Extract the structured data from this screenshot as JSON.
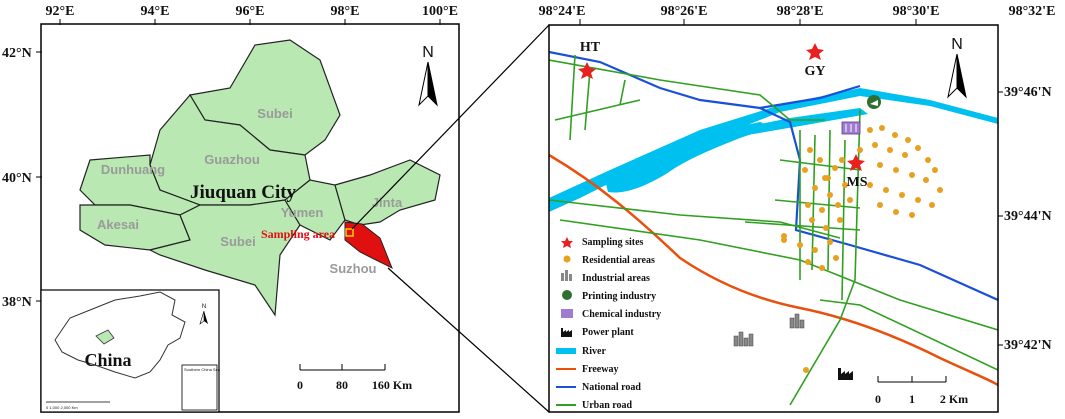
{
  "left_map": {
    "lon_ticks": [
      "92°E",
      "94°E",
      "96°E",
      "98°E",
      "100°E"
    ],
    "lat_ticks": [
      "42°N",
      "40°N",
      "38°N"
    ],
    "city_label": "Jiuquan City",
    "regions": [
      "Subei",
      "Guazhou",
      "Dunhuang",
      "Yumen",
      "Jinta",
      "Akesai",
      "Subei",
      "Suzhou"
    ],
    "sampling_label": "Sampling area",
    "north_label": "N",
    "scale": {
      "ticks": [
        "0",
        "80",
        "160 Km"
      ]
    },
    "inset": {
      "label": "China",
      "north": "N",
      "scs_label": "Southern China Sea",
      "scale_text": "0      1,000    2,000 Km"
    }
  },
  "right_map": {
    "lon_ticks": [
      "98°24'E",
      "98°26'E",
      "98°28'E",
      "98°30'E",
      "98°32'E"
    ],
    "lat_ticks": [
      "39°46'N",
      "39°44'N",
      "39°42'N"
    ],
    "sites": [
      "HT",
      "GY",
      "MS"
    ],
    "north_label": "N",
    "scale": {
      "ticks": [
        "0",
        "1",
        "2 Km"
      ]
    },
    "legend": [
      {
        "symbol": "star",
        "label": "Sampling sites"
      },
      {
        "symbol": "dot",
        "label": "Residential areas"
      },
      {
        "symbol": "building",
        "label": "Industrial areas"
      },
      {
        "symbol": "printing",
        "label": "Printing industry"
      },
      {
        "symbol": "chemical",
        "label": "Chemical industry"
      },
      {
        "symbol": "factory",
        "label": "Power plant"
      },
      {
        "symbol": "river",
        "label": "River"
      },
      {
        "symbol": "freeway",
        "label": "Freeway"
      },
      {
        "symbol": "national",
        "label": "National road"
      },
      {
        "symbol": "urban",
        "label": "Urban road"
      }
    ]
  },
  "colors": {
    "region_fill": "#b9e8b3",
    "sampling_fill": "#e01010",
    "river": "#00c0f0",
    "freeway": "#e8500c",
    "national_road": "#1a4fd8",
    "urban_road": "#30a020",
    "residential": "#e8a020",
    "star": "#e82020"
  }
}
